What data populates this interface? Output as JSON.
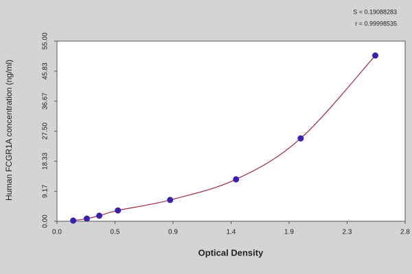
{
  "chart_data": {
    "type": "scatter",
    "xlabel": "Optical Density",
    "ylabel": "Human FCGR1A  concentration (ng/ml)",
    "annotations": [
      "S = 0.19088283",
      "r = 0.99998535"
    ],
    "x": [
      0.13,
      0.24,
      0.34,
      0.49,
      0.91,
      1.44,
      1.96,
      2.56
    ],
    "values": [
      0.2,
      0.8,
      1.7,
      3.3,
      6.5,
      12.8,
      25.3,
      50.6
    ],
    "color": "#3a1fb0",
    "line_color": "#a3283c",
    "xlim": [
      0,
      2.8
    ],
    "xticks": [
      {
        "value": 0,
        "label": "0.0"
      },
      {
        "value": 0.4667,
        "label": "0.5"
      },
      {
        "value": 0.9333,
        "label": "0.9"
      },
      1.4,
      {
        "value": 1.8667,
        "label": "1.9"
      },
      {
        "value": 2.3333,
        "label": "2.3"
      },
      2.8
    ],
    "ylim": [
      0,
      55
    ],
    "yticks": [
      {
        "value": 0,
        "label": "0.00"
      },
      9.17,
      18.33,
      {
        "value": 27.5,
        "label": "27.50"
      },
      36.67,
      45.83,
      {
        "value": 55,
        "label": "55.00"
      }
    ]
  }
}
